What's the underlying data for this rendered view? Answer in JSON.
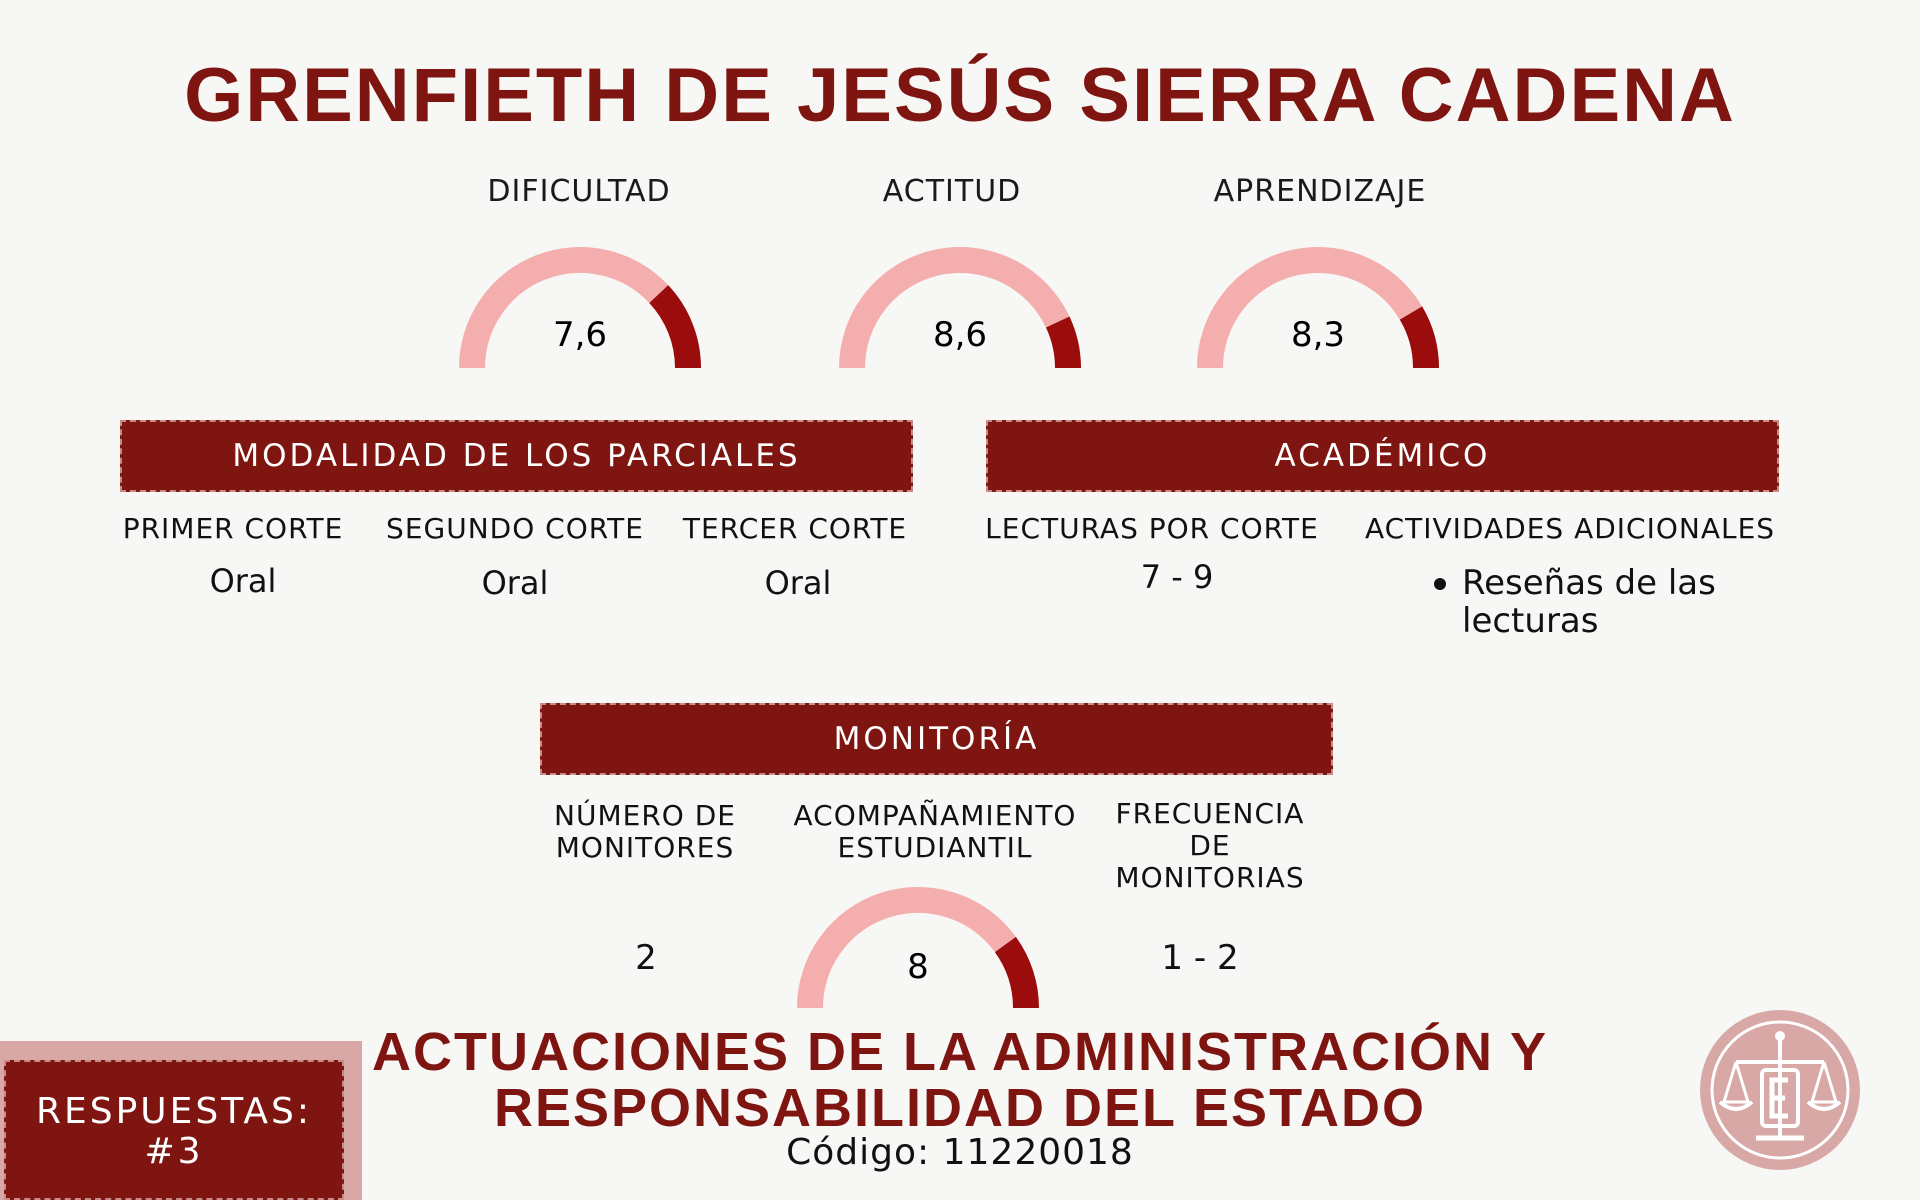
{
  "title": "GRENFIETH DE JESÚS SIERRA CADENA",
  "colors": {
    "primary": "#7e1510",
    "gauge_light": "#f5aeae",
    "gauge_dark": "#9b0d0d",
    "badge_back": "#d8a8a6"
  },
  "gauges": [
    {
      "label": "DIFICULTAD",
      "value_text": "7,6",
      "value": 7.6,
      "max": 10
    },
    {
      "label": "ACTITUD",
      "value_text": "8,6",
      "value": 8.6,
      "max": 10
    },
    {
      "label": "APRENDIZAJE",
      "value_text": "8,3",
      "value": 8.3,
      "max": 10
    }
  ],
  "modalidad": {
    "header": "MODALIDAD DE LOS PARCIALES",
    "columns": [
      {
        "label": "PRIMER CORTE",
        "value": "Oral"
      },
      {
        "label": "SEGUNDO CORTE",
        "value": "Oral"
      },
      {
        "label": "TERCER CORTE",
        "value": "Oral"
      }
    ]
  },
  "academico": {
    "header": "ACADÉMICO",
    "lecturas": {
      "label": "LECTURAS POR CORTE",
      "value": "7 - 9"
    },
    "actividades": {
      "label": "ACTIVIDADES ADICIONALES",
      "items": [
        "Reseñas de las lecturas"
      ]
    }
  },
  "monitoria": {
    "header": "MONITORÍA",
    "numero": {
      "label_line1": "NÚMERO DE",
      "label_line2": "MONITORES",
      "value": "2"
    },
    "acompanamiento": {
      "label_line1": "ACOMPAÑAMIENTO",
      "label_line2": "ESTUDIANTIL",
      "value_text": "8",
      "value": 8,
      "max": 10
    },
    "frecuencia": {
      "label_line1": "FRECUENCIA DE",
      "label_line2": "MONITORIAS",
      "value": "1 - 2"
    }
  },
  "subject_line1": "ACTUACIONES DE LA ADMINISTRACIÓN Y",
  "subject_line2": "RESPONSABILIDAD DEL ESTADO",
  "code": "Código: 11220018",
  "respuestas": {
    "line1": "RESPUESTAS:",
    "line2": "#3"
  },
  "logo": {
    "icon": "scales-of-justice-icon"
  }
}
